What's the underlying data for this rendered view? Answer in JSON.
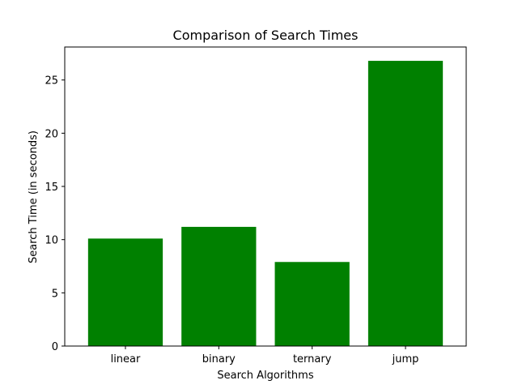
{
  "chart_data": {
    "type": "bar",
    "title": "Comparison of Search Times",
    "xlabel": "Search Algorithms",
    "ylabel": "Search Time (in seconds)",
    "categories": [
      "linear",
      "binary",
      "ternary",
      "jump"
    ],
    "values": [
      10.1,
      11.2,
      7.9,
      26.8
    ],
    "ylim": [
      0,
      28.1
    ],
    "yticks": [
      0,
      5,
      10,
      15,
      20,
      25
    ],
    "bar_color": "#008000",
    "grid": false
  }
}
